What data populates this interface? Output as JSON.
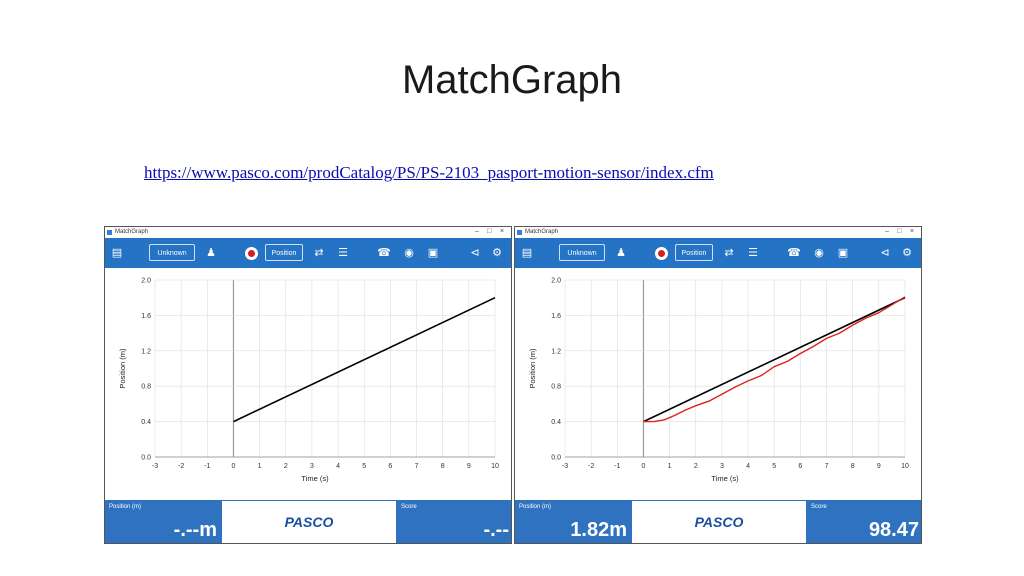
{
  "slide": {
    "title": "MatchGraph",
    "link": "https://www.pasco.com/prodCatalog/PS/PS-2103_pasport-motion-sensor/index.cfm"
  },
  "app": {
    "window_title": "MatchGraph",
    "window_controls": [
      "–",
      "□",
      "×"
    ],
    "toolbar": {
      "user_button": "Unknown",
      "mode_button": "Position",
      "icons": [
        "document-icon",
        "add-user-icon",
        "record-icon",
        "shuffle-icon",
        "sort-icon",
        "alarm-icon",
        "camera-icon",
        "export-icon",
        "share-icon",
        "gear-icon"
      ]
    },
    "colors": {
      "toolbar": "#2573c4",
      "footer": "#2f73c0",
      "target_line": "#000000",
      "measured_line": "#e02020"
    },
    "footer": {
      "position_label": "Position (m)",
      "score_label": "Score",
      "logo": "PASCO"
    }
  },
  "panels": [
    {
      "position_value": "-.--m",
      "score_value": "-.--"
    },
    {
      "position_value": "1.82m",
      "score_value": "98.47"
    }
  ],
  "chart_data": [
    {
      "type": "line",
      "xlabel": "Time (s)",
      "ylabel": "Position (m)",
      "xlim": [
        -3,
        10
      ],
      "ylim": [
        0,
        2.0
      ],
      "x_ticks": [
        -3,
        -2,
        -1,
        0,
        1,
        2,
        3,
        4,
        5,
        6,
        7,
        8,
        9,
        10
      ],
      "y_ticks": [
        "0.0",
        "0.4",
        "0.8",
        "1.2",
        "1.6",
        "2.0"
      ],
      "grid": true,
      "series": [
        {
          "color": "#000000",
          "x": [
            0,
            10
          ],
          "y": [
            0.4,
            1.8
          ]
        }
      ]
    },
    {
      "type": "line",
      "xlabel": "Time (s)",
      "ylabel": "Position (m)",
      "xlim": [
        -3,
        10
      ],
      "ylim": [
        0,
        2.0
      ],
      "x_ticks": [
        -3,
        -2,
        -1,
        0,
        1,
        2,
        3,
        4,
        5,
        6,
        7,
        8,
        9,
        10
      ],
      "y_ticks": [
        "0.0",
        "0.4",
        "0.8",
        "1.2",
        "1.6",
        "2.0"
      ],
      "grid": true,
      "series": [
        {
          "color": "#000000",
          "x": [
            0,
            10
          ],
          "y": [
            0.4,
            1.8
          ]
        },
        {
          "color": "#e02020",
          "x": [
            0,
            0.4,
            0.8,
            1.2,
            1.6,
            2.0,
            2.5,
            3.0,
            3.5,
            4.0,
            4.5,
            5.0,
            5.5,
            6.0,
            6.5,
            7.0,
            7.5,
            8.0,
            8.5,
            9.0,
            9.5,
            10.0
          ],
          "y": [
            0.4,
            0.4,
            0.42,
            0.47,
            0.53,
            0.58,
            0.63,
            0.71,
            0.79,
            0.86,
            0.92,
            1.02,
            1.08,
            1.17,
            1.25,
            1.34,
            1.4,
            1.49,
            1.57,
            1.63,
            1.72,
            1.81
          ]
        }
      ]
    }
  ]
}
